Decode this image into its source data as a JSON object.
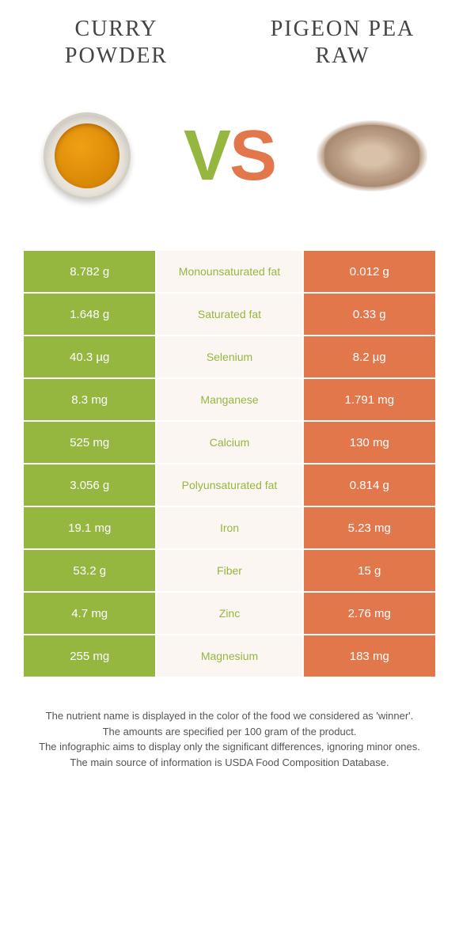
{
  "colors": {
    "left": "#95b740",
    "right": "#e3774c",
    "mid_bg": "#fcf6f2",
    "nutrient_text": "#95b740"
  },
  "titles": {
    "left": "Curry powder",
    "right": "Pigeon pea raw"
  },
  "vs": {
    "v": "V",
    "s": "S"
  },
  "rows": [
    {
      "left": "8.782 g",
      "nutrient": "Monounsaturated fat",
      "right": "0.012 g",
      "winner": "left"
    },
    {
      "left": "1.648 g",
      "nutrient": "Saturated fat",
      "right": "0.33 g",
      "winner": "left"
    },
    {
      "left": "40.3 µg",
      "nutrient": "Selenium",
      "right": "8.2 µg",
      "winner": "left"
    },
    {
      "left": "8.3 mg",
      "nutrient": "Manganese",
      "right": "1.791 mg",
      "winner": "left"
    },
    {
      "left": "525 mg",
      "nutrient": "Calcium",
      "right": "130 mg",
      "winner": "left"
    },
    {
      "left": "3.056 g",
      "nutrient": "Polyunsaturated fat",
      "right": "0.814 g",
      "winner": "left"
    },
    {
      "left": "19.1 mg",
      "nutrient": "Iron",
      "right": "5.23 mg",
      "winner": "left"
    },
    {
      "left": "53.2 g",
      "nutrient": "Fiber",
      "right": "15 g",
      "winner": "left"
    },
    {
      "left": "4.7 mg",
      "nutrient": "Zinc",
      "right": "2.76 mg",
      "winner": "left"
    },
    {
      "left": "255 mg",
      "nutrient": "Magnesium",
      "right": "183 mg",
      "winner": "left"
    }
  ],
  "footer": [
    "The nutrient name is displayed in the color of the food we considered as 'winner'.",
    "The amounts are specified per 100 gram of the product.",
    "The infographic aims to display only the significant differences, ignoring minor ones.",
    "The main source of information is USDA Food Composition Database."
  ]
}
